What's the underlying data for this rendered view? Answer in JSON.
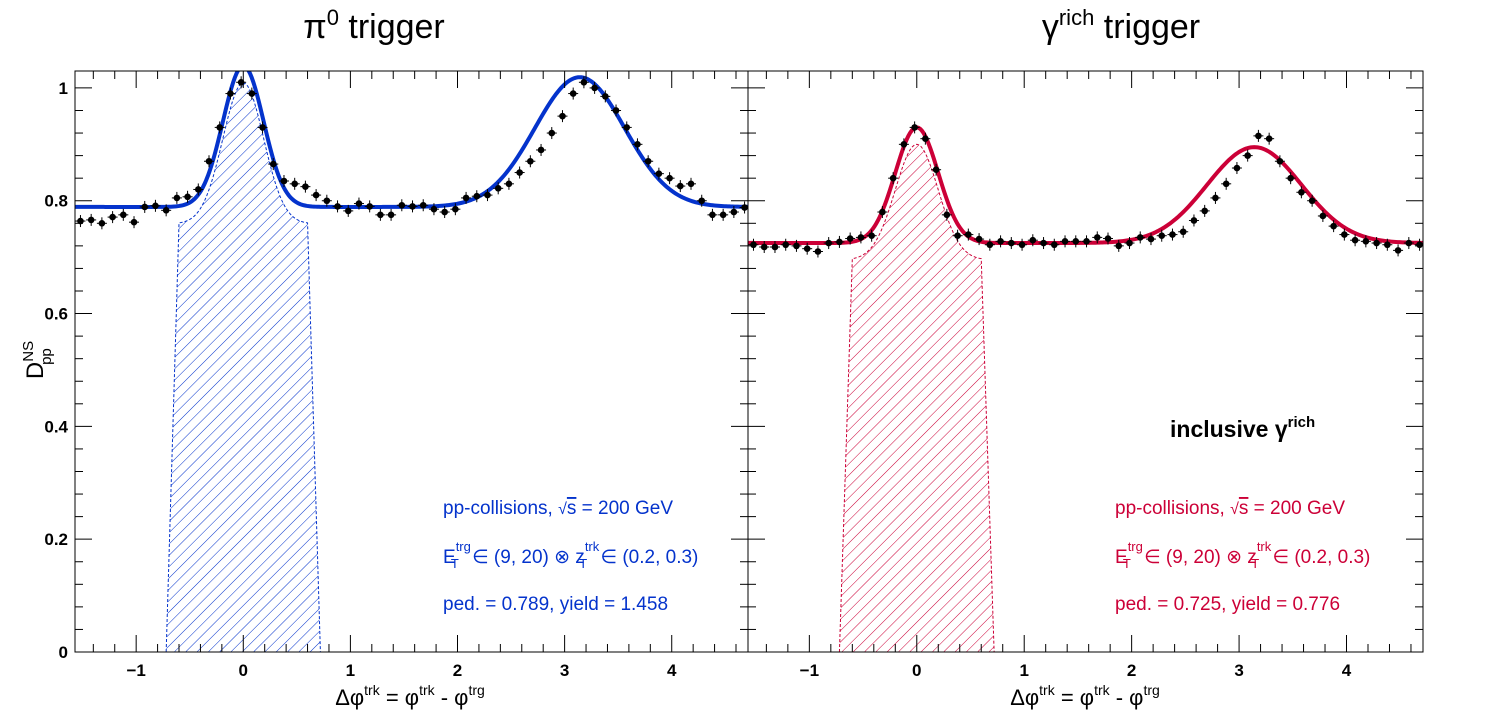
{
  "colors": {
    "blue": "#0433cc",
    "red": "#cc0037",
    "points": "#000000",
    "frame": "#000000"
  },
  "chart_data": [
    {
      "type": "line",
      "title": {
        "base": "π",
        "sup": "0",
        "tail": " trigger"
      },
      "xlabel": {
        "a": "Δφ",
        "a_sup": "trk",
        "b": " = φ",
        "b_sup": "trk",
        "c": " - φ",
        "c_sup": "trg"
      },
      "ylabel": {
        "base": "D",
        "sup": "NS",
        "sub": "pp"
      },
      "xlim": [
        -1.571,
        4.712
      ],
      "ylim": [
        0,
        1.03
      ],
      "x_ticks": [
        "-1",
        "0",
        "1",
        "2",
        "3",
        "4"
      ],
      "y_ticks": [
        "0",
        "0.2",
        "0.4",
        "0.6",
        "0.8",
        "1"
      ],
      "color": "#0433cc",
      "fit": {
        "pedestal": 0.789,
        "near_amp": 0.25,
        "near_sigma": 0.19,
        "away_amp": 0.23,
        "away_sigma": 0.42
      },
      "hatched_region": [
        -0.6,
        0.6
      ],
      "points": [
        [
          -1.52,
          0.764
        ],
        [
          -1.42,
          0.766
        ],
        [
          -1.32,
          0.76
        ],
        [
          -1.22,
          0.771
        ],
        [
          -1.12,
          0.775
        ],
        [
          -1.02,
          0.762
        ],
        [
          -0.92,
          0.789
        ],
        [
          -0.82,
          0.791
        ],
        [
          -0.72,
          0.783
        ],
        [
          -0.62,
          0.805
        ],
        [
          -0.52,
          0.807
        ],
        [
          -0.42,
          0.82
        ],
        [
          -0.32,
          0.87
        ],
        [
          -0.22,
          0.93
        ],
        [
          -0.12,
          0.99
        ],
        [
          -0.02,
          1.01
        ],
        [
          0.08,
          0.99
        ],
        [
          0.18,
          0.93
        ],
        [
          0.28,
          0.865
        ],
        [
          0.38,
          0.835
        ],
        [
          0.48,
          0.83
        ],
        [
          0.58,
          0.825
        ],
        [
          0.68,
          0.81
        ],
        [
          0.78,
          0.8
        ],
        [
          0.88,
          0.79
        ],
        [
          0.98,
          0.782
        ],
        [
          1.08,
          0.795
        ],
        [
          1.18,
          0.79
        ],
        [
          1.28,
          0.775
        ],
        [
          1.38,
          0.775
        ],
        [
          1.48,
          0.792
        ],
        [
          1.58,
          0.79
        ],
        [
          1.68,
          0.792
        ],
        [
          1.78,
          0.785
        ],
        [
          1.88,
          0.78
        ],
        [
          1.98,
          0.785
        ],
        [
          2.08,
          0.805
        ],
        [
          2.18,
          0.808
        ],
        [
          2.28,
          0.81
        ],
        [
          2.38,
          0.822
        ],
        [
          2.48,
          0.83
        ],
        [
          2.58,
          0.85
        ],
        [
          2.68,
          0.87
        ],
        [
          2.78,
          0.89
        ],
        [
          2.88,
          0.92
        ],
        [
          2.98,
          0.95
        ],
        [
          3.08,
          0.99
        ],
        [
          3.18,
          1.01
        ],
        [
          3.28,
          1.0
        ],
        [
          3.38,
          0.985
        ],
        [
          3.48,
          0.96
        ],
        [
          3.58,
          0.93
        ],
        [
          3.68,
          0.9
        ],
        [
          3.78,
          0.87
        ],
        [
          3.88,
          0.848
        ],
        [
          3.98,
          0.84
        ],
        [
          4.08,
          0.826
        ],
        [
          4.18,
          0.83
        ],
        [
          4.28,
          0.8
        ],
        [
          4.38,
          0.775
        ],
        [
          4.48,
          0.775
        ],
        [
          4.58,
          0.78
        ],
        [
          4.68,
          0.788
        ]
      ],
      "annotations": {
        "line1": "pp-collisions, ",
        "sqrt_s": "s",
        "line1_tail": " = 200 GeV",
        "e_base": "E",
        "e_sup": "trg",
        "e_sub": "T",
        "e_range": " ∈ (9, 20) ⊗ z",
        "z_sup": "trk",
        "z_sub": "T",
        "z_range": " ∈ (0.2, 0.3)",
        "line3": "ped. = 0.789, yield = 1.458"
      }
    },
    {
      "type": "line",
      "title": {
        "base": "γ",
        "sup": "rich",
        "tail": " trigger"
      },
      "xlabel": {
        "a": "Δφ",
        "a_sup": "trk",
        "b": " = φ",
        "b_sup": "trk",
        "c": " - φ",
        "c_sup": "trg"
      },
      "xlim": [
        -1.571,
        4.712
      ],
      "ylim": [
        0,
        1.03
      ],
      "x_ticks": [
        "-1",
        "0",
        "1",
        "2",
        "3",
        "4"
      ],
      "color": "#cc0037",
      "fit": {
        "pedestal": 0.725,
        "near_amp": 0.205,
        "near_sigma": 0.2,
        "away_amp": 0.17,
        "away_sigma": 0.44
      },
      "hatched_region": [
        -0.6,
        0.6
      ],
      "points": [
        [
          -1.52,
          0.722
        ],
        [
          -1.42,
          0.718
        ],
        [
          -1.32,
          0.718
        ],
        [
          -1.22,
          0.722
        ],
        [
          -1.12,
          0.72
        ],
        [
          -1.02,
          0.715
        ],
        [
          -0.92,
          0.71
        ],
        [
          -0.82,
          0.725
        ],
        [
          -0.72,
          0.727
        ],
        [
          -0.62,
          0.733
        ],
        [
          -0.52,
          0.735
        ],
        [
          -0.42,
          0.738
        ],
        [
          -0.32,
          0.78
        ],
        [
          -0.22,
          0.84
        ],
        [
          -0.12,
          0.9
        ],
        [
          -0.02,
          0.93
        ],
        [
          0.08,
          0.91
        ],
        [
          0.18,
          0.855
        ],
        [
          0.28,
          0.775
        ],
        [
          0.38,
          0.738
        ],
        [
          0.48,
          0.74
        ],
        [
          0.58,
          0.732
        ],
        [
          0.68,
          0.722
        ],
        [
          0.78,
          0.728
        ],
        [
          0.88,
          0.725
        ],
        [
          0.98,
          0.722
        ],
        [
          1.08,
          0.73
        ],
        [
          1.18,
          0.725
        ],
        [
          1.28,
          0.722
        ],
        [
          1.38,
          0.728
        ],
        [
          1.48,
          0.728
        ],
        [
          1.58,
          0.728
        ],
        [
          1.68,
          0.735
        ],
        [
          1.78,
          0.733
        ],
        [
          1.88,
          0.72
        ],
        [
          1.98,
          0.725
        ],
        [
          2.08,
          0.735
        ],
        [
          2.18,
          0.732
        ],
        [
          2.28,
          0.738
        ],
        [
          2.38,
          0.74
        ],
        [
          2.48,
          0.745
        ],
        [
          2.58,
          0.765
        ],
        [
          2.68,
          0.782
        ],
        [
          2.78,
          0.805
        ],
        [
          2.88,
          0.83
        ],
        [
          2.98,
          0.858
        ],
        [
          3.08,
          0.88
        ],
        [
          3.18,
          0.915
        ],
        [
          3.28,
          0.91
        ],
        [
          3.38,
          0.87
        ],
        [
          3.48,
          0.84
        ],
        [
          3.58,
          0.815
        ],
        [
          3.68,
          0.8
        ],
        [
          3.78,
          0.773
        ],
        [
          3.88,
          0.755
        ],
        [
          3.98,
          0.74
        ],
        [
          4.08,
          0.73
        ],
        [
          4.18,
          0.728
        ],
        [
          4.28,
          0.725
        ],
        [
          4.38,
          0.722
        ],
        [
          4.48,
          0.712
        ],
        [
          4.58,
          0.725
        ],
        [
          4.68,
          0.722
        ]
      ],
      "inclusive_label": {
        "base": "inclusive  γ",
        "sup": "rich"
      },
      "annotations": {
        "line1": "pp-collisions, ",
        "sqrt_s": "s",
        "line1_tail": " = 200 GeV",
        "e_base": "E",
        "e_sup": "trg",
        "e_sub": "T",
        "e_range": " ∈ (9, 20) ⊗ z",
        "z_sup": "trk",
        "z_sub": "T",
        "z_range": " ∈ (0.2, 0.3)",
        "line3": "ped. = 0.725, yield = 0.776"
      }
    }
  ]
}
